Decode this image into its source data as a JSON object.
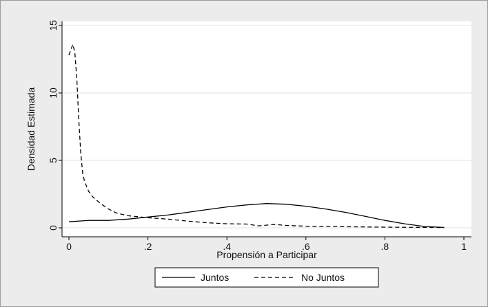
{
  "chart_data": {
    "type": "line",
    "xlabel": "Propensión a Participar",
    "ylabel": "Densidad Estimada",
    "xlim": [
      0,
      1
    ],
    "ylim": [
      0,
      15
    ],
    "x_ticks": [
      0,
      0.2,
      0.4,
      0.6,
      0.8,
      1
    ],
    "x_tick_labels": [
      "0",
      ".2",
      ".4",
      ".6",
      ".8",
      "1"
    ],
    "y_ticks": [
      0,
      5,
      10,
      15
    ],
    "y_tick_labels": [
      "0",
      "5",
      "10",
      "15"
    ],
    "grid": "horizontal",
    "legend_position": "bottom",
    "series": [
      {
        "name": "Juntos",
        "style": "solid",
        "x": [
          0,
          0.05,
          0.1,
          0.15,
          0.2,
          0.25,
          0.3,
          0.35,
          0.4,
          0.45,
          0.5,
          0.55,
          0.6,
          0.65,
          0.7,
          0.75,
          0.8,
          0.85,
          0.9,
          0.95
        ],
        "y": [
          0.45,
          0.55,
          0.55,
          0.65,
          0.8,
          0.95,
          1.15,
          1.35,
          1.55,
          1.7,
          1.8,
          1.75,
          1.6,
          1.4,
          1.15,
          0.85,
          0.55,
          0.3,
          0.1,
          0.03
        ]
      },
      {
        "name": "No Juntos",
        "style": "dashed",
        "x": [
          0,
          0.01,
          0.015,
          0.02,
          0.025,
          0.03,
          0.035,
          0.04,
          0.05,
          0.06,
          0.08,
          0.1,
          0.12,
          0.15,
          0.2,
          0.25,
          0.3,
          0.35,
          0.4,
          0.45,
          0.48,
          0.52,
          0.55,
          0.6,
          0.7,
          0.8,
          0.9,
          0.95
        ],
        "y": [
          12.8,
          13.6,
          13.0,
          11.0,
          8.0,
          5.5,
          4.0,
          3.4,
          2.7,
          2.3,
          1.8,
          1.4,
          1.1,
          0.9,
          0.75,
          0.65,
          0.5,
          0.38,
          0.3,
          0.28,
          0.15,
          0.25,
          0.18,
          0.12,
          0.08,
          0.05,
          0.03,
          0.02
        ]
      }
    ]
  }
}
